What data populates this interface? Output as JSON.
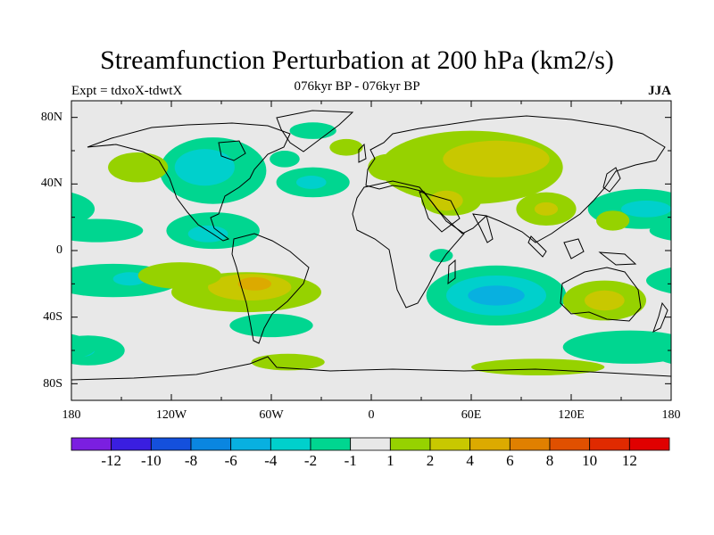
{
  "title": "Streamfunction Perturbation at 200 hPa (km2/s)",
  "subtitle": "076kyr BP - 076kyr BP",
  "experiment": "Expt = tdxoX-tdwtX",
  "season": "JJA",
  "lat_labels": [
    "80N",
    "40N",
    "0",
    "40S",
    "80S"
  ],
  "lon_labels": [
    "180",
    "120W",
    "60W",
    "0",
    "60E",
    "120E",
    "180"
  ],
  "colorbar": {
    "labels": [
      "-12",
      "-10",
      "-8",
      "-6",
      "-4",
      "-2",
      "-1",
      "1",
      "2",
      "4",
      "6",
      "8",
      "10",
      "12"
    ],
    "colors": [
      "#7b1fe0",
      "#3a1ee0",
      "#1450dc",
      "#0a86e0",
      "#08b0e0",
      "#00d0cc",
      "#00d690",
      "#e8e8e8",
      "#96d200",
      "#c8c800",
      "#dcaa00",
      "#e08000",
      "#e05000",
      "#e02a00",
      "#e00000"
    ]
  },
  "anomalies": [
    {
      "region": "north-america",
      "lon": -95,
      "lat": 48,
      "rx": 32,
      "ry": 20,
      "level": -2
    },
    {
      "region": "north-america-core",
      "lon": -100,
      "lat": 50,
      "rx": 18,
      "ry": 11,
      "level": -4
    },
    {
      "region": "north-atlantic",
      "lon": -35,
      "lat": 41,
      "rx": 22,
      "ry": 9,
      "level": -2
    },
    {
      "region": "north-atlantic-core",
      "lon": -36,
      "lat": 41,
      "rx": 9,
      "ry": 4,
      "level": -4
    },
    {
      "region": "greenland",
      "lon": -35,
      "lat": 72,
      "rx": 14,
      "ry": 5,
      "level": -2
    },
    {
      "region": "labrador-sea",
      "lon": -52,
      "lat": 55,
      "rx": 9,
      "ry": 5,
      "level": -2
    },
    {
      "region": "tropical-east-pacific",
      "lon": -95,
      "lat": 12,
      "rx": 28,
      "ry": 11,
      "level": -2
    },
    {
      "region": "tropical-east-pacific-core",
      "lon": -98,
      "lat": 10,
      "rx": 12,
      "ry": 5,
      "level": -4
    },
    {
      "region": "central-pacific-north",
      "lon": -165,
      "lat": 12,
      "rx": 28,
      "ry": 7,
      "level": -2
    },
    {
      "region": "south-pacific",
      "lon": -155,
      "lat": -18,
      "rx": 40,
      "ry": 10,
      "level": -2
    },
    {
      "region": "south-pacific-core",
      "lon": -145,
      "lat": -17,
      "rx": 10,
      "ry": 4,
      "level": -4
    },
    {
      "region": "south-america-south",
      "lon": -60,
      "lat": -45,
      "rx": 25,
      "ry": 7,
      "level": -2
    },
    {
      "region": "south-pacific-high-lat",
      "lon": -170,
      "lat": -60,
      "rx": 22,
      "ry": 9,
      "level": -2
    },
    {
      "region": "south-pacific-high-lat-core",
      "lon": -175,
      "lat": -60,
      "rx": 9,
      "ry": 4,
      "level": -4
    },
    {
      "region": "indian-ocean",
      "lon": 75,
      "lat": -27,
      "rx": 42,
      "ry": 18,
      "level": -2
    },
    {
      "region": "indian-ocean-mid",
      "lon": 75,
      "lat": -27,
      "rx": 30,
      "ry": 12,
      "level": -4
    },
    {
      "region": "indian-ocean-core",
      "lon": 75,
      "lat": -27,
      "rx": 17,
      "ry": 6,
      "level": -6
    },
    {
      "region": "west-pacific-north",
      "lon": 162,
      "lat": 25,
      "rx": 32,
      "ry": 12,
      "level": -2
    },
    {
      "region": "west-pacific-north-core",
      "lon": 165,
      "lat": 25,
      "rx": 15,
      "ry": 5,
      "level": -4
    },
    {
      "region": "southern-ocean-australia",
      "lon": 155,
      "lat": -58,
      "rx": 40,
      "ry": 10,
      "level": -2
    },
    {
      "region": "east-africa",
      "lon": 42,
      "lat": -3,
      "rx": 7,
      "ry": 4,
      "level": -2
    },
    {
      "region": "eurasia",
      "lon": 60,
      "lat": 50,
      "rx": 55,
      "ry": 22,
      "level": 2
    },
    {
      "region": "eurasia-core",
      "lon": 75,
      "lat": 55,
      "rx": 32,
      "ry": 11,
      "level": 4
    },
    {
      "region": "middle-east",
      "lon": 48,
      "lat": 30,
      "rx": 18,
      "ry": 9,
      "level": 2
    },
    {
      "region": "middle-east-core",
      "lon": 45,
      "lat": 30,
      "rx": 10,
      "ry": 6,
      "level": 4
    },
    {
      "region": "europe",
      "lon": 10,
      "lat": 50,
      "rx": 12,
      "ry": 8,
      "level": 2
    },
    {
      "region": "south-america",
      "lon": -75,
      "lat": -25,
      "rx": 45,
      "ry": 12,
      "level": 2
    },
    {
      "region": "south-america-mid",
      "lon": -73,
      "lat": -22,
      "rx": 25,
      "ry": 8,
      "level": 4
    },
    {
      "region": "south-america-core",
      "lon": -70,
      "lat": -20,
      "rx": 10,
      "ry": 4,
      "level": 6
    },
    {
      "region": "south-atlantic",
      "lon": -50,
      "lat": -67,
      "rx": 22,
      "ry": 5,
      "level": 2
    },
    {
      "region": "australia",
      "lon": 140,
      "lat": -30,
      "rx": 25,
      "ry": 12,
      "level": 2
    },
    {
      "region": "australia-core",
      "lon": 140,
      "lat": -30,
      "rx": 12,
      "ry": 6,
      "level": 4
    },
    {
      "region": "western-pacific-tropics",
      "lon": 145,
      "lat": 18,
      "rx": 10,
      "ry": 6,
      "level": 2
    },
    {
      "region": "southeast-asia",
      "lon": 105,
      "lat": 25,
      "rx": 18,
      "ry": 10,
      "level": 2
    },
    {
      "region": "southeast-asia-core",
      "lon": 105,
      "lat": 25,
      "rx": 7,
      "ry": 4,
      "level": 4
    },
    {
      "region": "east-pacific-south-tropics",
      "lon": -115,
      "lat": -15,
      "rx": 25,
      "ry": 8,
      "level": 2
    },
    {
      "region": "north-pacific-east",
      "lon": -140,
      "lat": 50,
      "rx": 18,
      "ry": 9,
      "level": 2
    },
    {
      "region": "south-indian-high-lat",
      "lon": 100,
      "lat": -70,
      "rx": 40,
      "ry": 5,
      "level": 2
    },
    {
      "region": "north-atlantic-high-lat",
      "lon": -15,
      "lat": 62,
      "rx": 10,
      "ry": 5,
      "level": 2
    }
  ]
}
